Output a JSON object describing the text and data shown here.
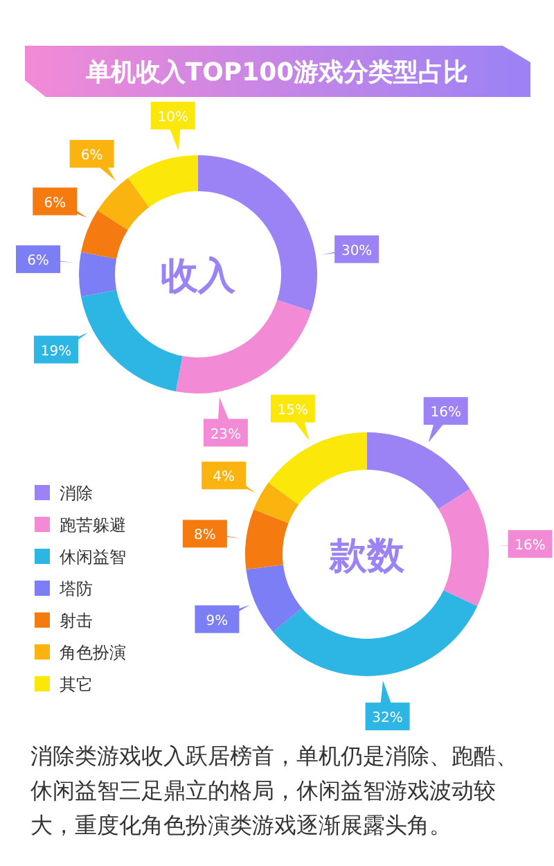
{
  "chart_data": [
    {
      "type": "donut",
      "title": "收入",
      "categories": [
        null,
        null,
        null,
        null,
        null,
        null,
        null
      ],
      "values": [
        30,
        23,
        19,
        6,
        6,
        6,
        10
      ],
      "value_labels": [
        "30%",
        "23%",
        "19%",
        "6%",
        "6%",
        "6%",
        "10%"
      ],
      "colors": [
        "#9b82f5",
        "#f28ad6",
        "#2db5e3",
        "#7b7ef5",
        "#f57a0f",
        "#fbb40f",
        "#fbe80a"
      ],
      "annotations": [
        "单机收入TOP100游戏分类型占比"
      ]
    },
    {
      "type": "donut",
      "title": "款数",
      "categories": [
        "消除",
        "跑苦躲避",
        "休闲益智",
        "塔防",
        "射击",
        "角色扮演",
        "其它"
      ],
      "values": [
        16,
        16,
        32,
        9,
        8,
        4,
        15
      ],
      "value_labels": [
        "16%",
        "16%",
        "32%",
        "9%",
        "8%",
        "4%",
        "15%"
      ],
      "colors": [
        "#9b82f5",
        "#f28ad6",
        "#2db5e3",
        "#7b7ef5",
        "#f57a0f",
        "#fbb40f",
        "#fbe80a"
      ],
      "legend": "left",
      "annotations": [
        "消除类游戏收入跃居榜首，单机仍是消除、跑酷、休闲益智三足鼎立的格局，休闲益智游戏波动较大，重度化角色扮演类游戏逐渐展露头角。"
      ]
    }
  ]
}
